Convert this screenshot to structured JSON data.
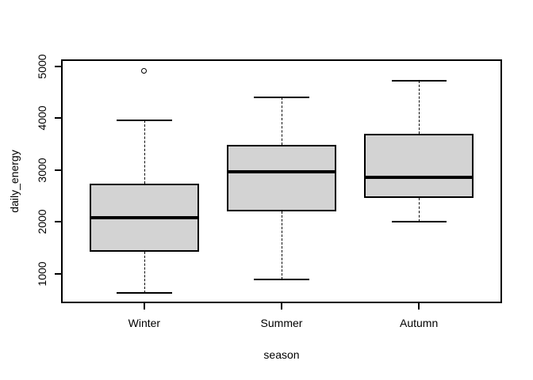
{
  "chart_data": {
    "type": "boxplot",
    "title": "",
    "xlabel": "season",
    "ylabel": "daily_energy",
    "categories": [
      "Winter",
      "Summer",
      "Autumn"
    ],
    "series": [
      {
        "name": "Winter",
        "lower_whisker": 640,
        "q1": 1420,
        "median": 2080,
        "q3": 2740,
        "upper_whisker": 3960,
        "outliers": [
          4910
        ]
      },
      {
        "name": "Summer",
        "lower_whisker": 890,
        "q1": 2210,
        "median": 2970,
        "q3": 3480,
        "upper_whisker": 4400,
        "outliers": []
      },
      {
        "name": "Autumn",
        "lower_whisker": 2000,
        "q1": 2470,
        "median": 2860,
        "q3": 3700,
        "upper_whisker": 4730,
        "outliers": []
      }
    ],
    "yticks": [
      1000,
      2000,
      3000,
      4000,
      5000
    ],
    "ylim": [
      450,
      5120
    ],
    "xlim": [
      0.4,
      3.6
    ],
    "category_positions": [
      1,
      2,
      3
    ],
    "box_width": 0.8,
    "cap_width": 0.4,
    "grid": false,
    "legend": null,
    "colors": {
      "box_fill": "#d3d3d3",
      "line": "#000000",
      "background": "#ffffff"
    }
  }
}
